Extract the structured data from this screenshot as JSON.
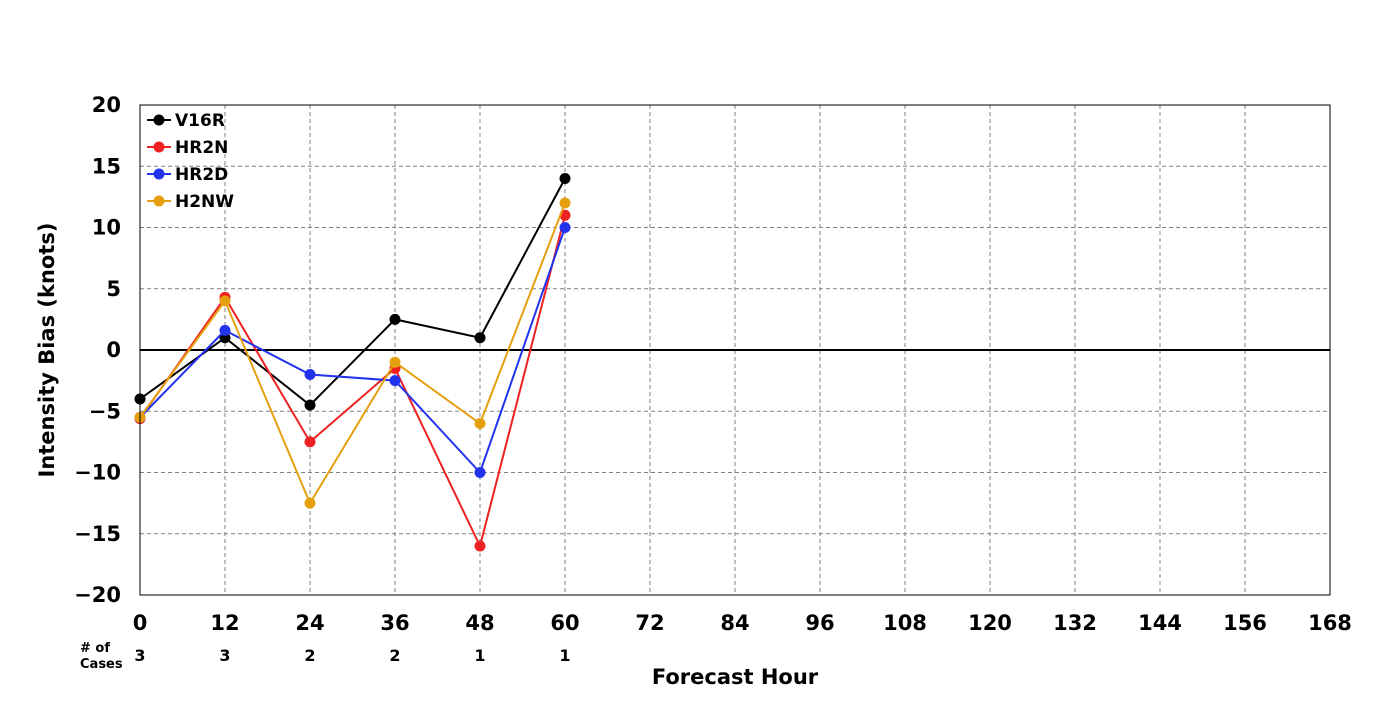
{
  "chart_data": {
    "type": "line",
    "title": "",
    "xlabel": "Forecast Hour",
    "ylabel": "Intensity Bias (knots)",
    "xlim": [
      0,
      168
    ],
    "ylim": [
      -20,
      20
    ],
    "x_ticks": [
      0,
      12,
      24,
      36,
      48,
      60,
      72,
      84,
      96,
      108,
      120,
      132,
      144,
      156,
      168
    ],
    "y_ticks": [
      20,
      15,
      10,
      5,
      0,
      -5,
      -10,
      -15,
      -20
    ],
    "grid": true,
    "legend_position": "top-left",
    "x": [
      0,
      12,
      24,
      36,
      48,
      60
    ],
    "series": [
      {
        "name": "V16R",
        "color": "#000000",
        "values": [
          -4,
          1,
          -4.5,
          2.5,
          1,
          14
        ]
      },
      {
        "name": "HR2N",
        "color": "#ee2222",
        "values": [
          -5.6,
          4.3,
          -7.5,
          -1.5,
          -16,
          11
        ]
      },
      {
        "name": "HR2D",
        "color": "#2233ee",
        "values": [
          -5.5,
          1.6,
          -2,
          -2.5,
          -10,
          10
        ]
      },
      {
        "name": "H2NW",
        "color": "#e5a010",
        "values": [
          -5.5,
          4,
          -12.5,
          -1,
          -6,
          12
        ]
      }
    ],
    "cases_label": "# of\nCases",
    "cases": [
      {
        "x": 0,
        "count": "3"
      },
      {
        "x": 12,
        "count": "3"
      },
      {
        "x": 24,
        "count": "2"
      },
      {
        "x": 36,
        "count": "2"
      },
      {
        "x": 48,
        "count": "1"
      },
      {
        "x": 60,
        "count": "1"
      }
    ]
  }
}
